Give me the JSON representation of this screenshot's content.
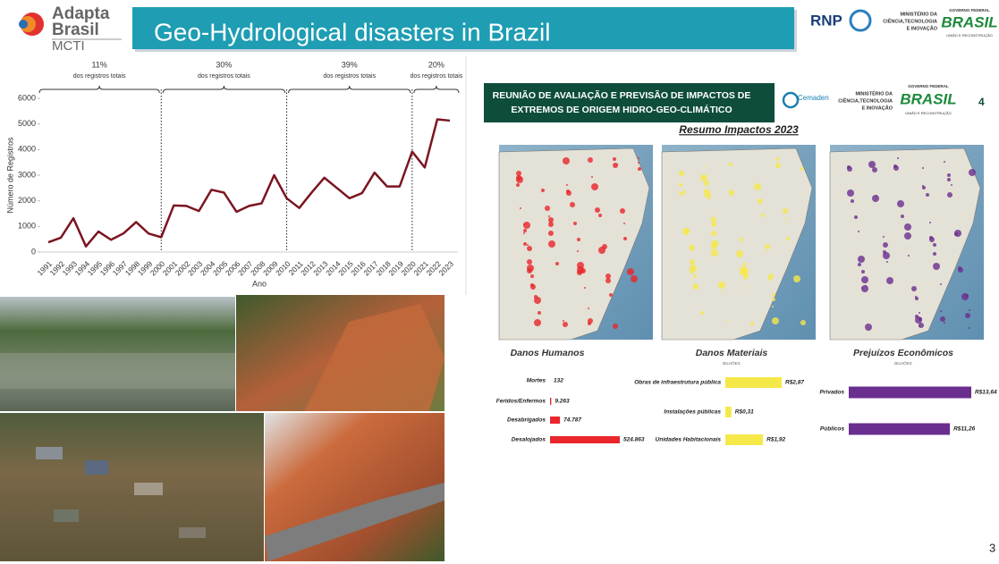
{
  "header": {
    "logo": [
      "Adapta",
      "Brasil",
      "MCTI"
    ],
    "title": "Geo-Hydrological disasters in Brazil",
    "partners": {
      "rnp": "RNP",
      "ministry": [
        "MINISTÉRIO DA",
        "CIÊNCIA,TECNOLOGIA",
        "E INOVAÇÃO"
      ],
      "government": [
        "GOVERNO FEDERAL",
        "BRASIL",
        "UNIÃO E RECONSTRUÇÃO"
      ]
    }
  },
  "periods": [
    {
      "share": "11%",
      "note": "dos registros totais"
    },
    {
      "share": "30%",
      "note": "dos registros totais"
    },
    {
      "share": "39%",
      "note": "dos registros totais"
    },
    {
      "share": "20%",
      "note": "dos registros totais"
    }
  ],
  "chart_data": [
    {
      "type": "line",
      "x_label": "Ano",
      "y_label": "Número de Registros",
      "color": "#7b1520",
      "categories": [
        "1991",
        "1992",
        "1993",
        "1994",
        "1995",
        "1996",
        "1997",
        "1998",
        "1999",
        "2000",
        "2001",
        "2002",
        "2003",
        "2004",
        "2005",
        "2006",
        "2007",
        "2008",
        "2009",
        "2010",
        "2011",
        "2012",
        "2013",
        "2014",
        "2015",
        "2016",
        "2017",
        "2018",
        "2019",
        "2020",
        "2021",
        "2022",
        "2023"
      ],
      "values": [
        380,
        560,
        1320,
        220,
        800,
        480,
        730,
        1170,
        720,
        580,
        1820,
        1800,
        1600,
        2430,
        2320,
        1570,
        1800,
        1900,
        3000,
        2100,
        1720,
        2330,
        2900,
        2500,
        2100,
        2300,
        3100,
        2560,
        2560,
        3920,
        3300,
        5180,
        5130
      ],
      "ylim": [
        0,
        6000
      ],
      "yticks": [
        0,
        1000,
        2000,
        3000,
        4000,
        5000,
        6000
      ]
    },
    {
      "type": "hbar",
      "title": "Danos Humanos",
      "color": "#e8262b",
      "categories": [
        "Mortes",
        "Feridos/Enfermos",
        "Desabrigados",
        "Desalojados"
      ],
      "values": [
        132,
        9263,
        74787,
        524863
      ],
      "value_labels": [
        "132",
        "9.263",
        "74.787",
        "524.863"
      ]
    },
    {
      "type": "hbar",
      "title": "Danos Materiais",
      "unit": "BILHÕES",
      "color": "#f5e94a",
      "categories": [
        "Obras de infraestrutura pública",
        "Instalações públicas",
        "Unidades Habitacionais"
      ],
      "values": [
        2.87,
        0.31,
        1.92
      ],
      "value_labels": [
        "R$2,87",
        "R$0,31",
        "R$1,92"
      ]
    },
    {
      "type": "hbar",
      "title": "Prejuízos Econômicos",
      "unit": "BILHÕES",
      "color": "#6a2e8f",
      "categories": [
        "Privados",
        "Públicos"
      ],
      "values": [
        13.64,
        11.26
      ],
      "value_labels": [
        "R$13,64",
        "R$11,26"
      ]
    }
  ],
  "panel": {
    "title": [
      "REUNIÃO DE AVALIAÇÃO E PREVISÃO DE IMPACTOS DE",
      "EXTREMOS DE ORIGEM HIDRO-GEO-CLIMÁTICO"
    ],
    "cemaden": "Cemaden",
    "ministry": [
      "MINISTÉRIO DA",
      "CIÊNCIA,TECNOLOGIA",
      "E INOVAÇÃO"
    ],
    "government": [
      "GOVERNO FEDERAL",
      "BRASIL",
      "UNIÃO E RECONSTRUÇÃO"
    ],
    "slide": "4",
    "subtitle": "Resumo Impactos 2023"
  },
  "page_number": "3"
}
